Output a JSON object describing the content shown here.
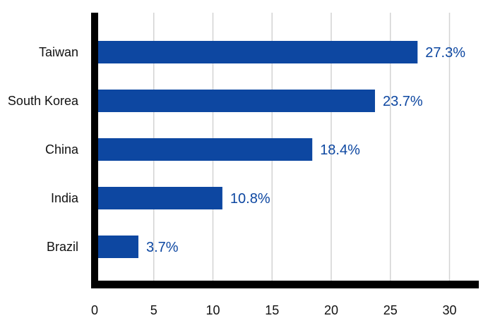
{
  "chart_data": {
    "type": "bar",
    "orientation": "horizontal",
    "categories": [
      "Taiwan",
      "South Korea",
      "China",
      "India",
      "Brazil"
    ],
    "values": [
      27.3,
      23.7,
      18.4,
      10.8,
      3.7
    ],
    "data_labels": [
      "27.3%",
      "23.7%",
      "18.4%",
      "10.8%",
      "3.7%"
    ],
    "title": "",
    "xlabel": "",
    "ylabel": "",
    "xlim": [
      0,
      32
    ],
    "x_ticks": [
      0,
      5,
      10,
      15,
      20,
      25,
      30
    ],
    "grid": "vertical",
    "legend": "none",
    "colors": {
      "bar": "#0d47a1",
      "data_label": "#0d47a1",
      "grid": "#d3d3d3",
      "axis": "#000000"
    }
  }
}
